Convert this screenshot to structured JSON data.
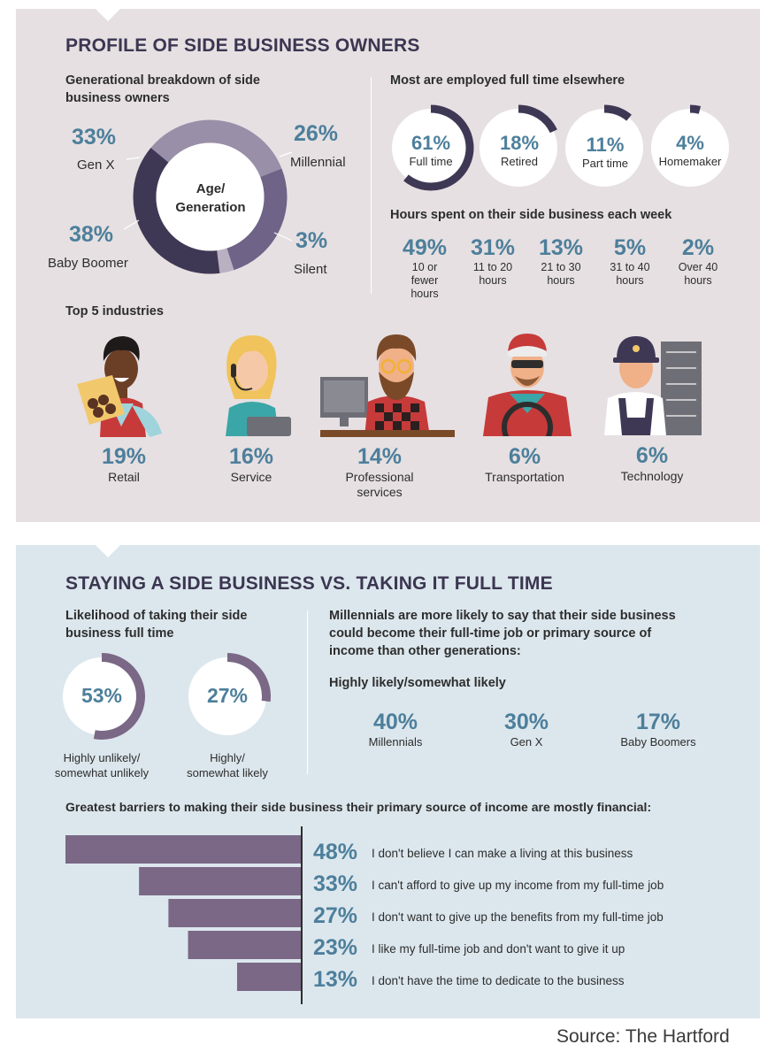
{
  "profile": {
    "title": "PROFILE OF SIDE BUSINESS OWNERS",
    "generation": {
      "heading_line1": "Generational breakdown of side",
      "heading_line2": "business owners",
      "center_line1": "Age/",
      "center_line2": "Generation",
      "items": [
        {
          "pct": "33%",
          "label": "Gen X"
        },
        {
          "pct": "26%",
          "label": "Millennial"
        },
        {
          "pct": "3%",
          "label": "Silent"
        },
        {
          "pct": "38%",
          "label": "Baby Boomer"
        }
      ]
    },
    "employment": {
      "heading": "Most are employed full time elsewhere",
      "items": [
        {
          "pct": "61%",
          "label": "Full time",
          "value": 61
        },
        {
          "pct": "18%",
          "label": "Retired",
          "value": 18
        },
        {
          "pct": "11%",
          "label": "Part time",
          "value": 11
        },
        {
          "pct": "4%",
          "label": "Homemaker",
          "value": 4
        }
      ]
    },
    "hours": {
      "heading": "Hours spent on their side business each week",
      "items": [
        {
          "pct": "49%",
          "l1": "10 or",
          "l2": "fewer",
          "l3": "hours"
        },
        {
          "pct": "31%",
          "l1": "11 to 20",
          "l2": "hours",
          "l3": ""
        },
        {
          "pct": "13%",
          "l1": "21 to 30",
          "l2": "hours",
          "l3": ""
        },
        {
          "pct": "5%",
          "l1": "31 to 40",
          "l2": "hours",
          "l3": ""
        },
        {
          "pct": "2%",
          "l1": "Over 40",
          "l2": "hours",
          "l3": ""
        }
      ]
    },
    "industries": {
      "heading": "Top 5 industries",
      "items": [
        {
          "pct": "19%",
          "l1": "Retail",
          "l2": ""
        },
        {
          "pct": "16%",
          "l1": "Service",
          "l2": ""
        },
        {
          "pct": "14%",
          "l1": "Professional",
          "l2": "services"
        },
        {
          "pct": "6%",
          "l1": "Transportation",
          "l2": ""
        },
        {
          "pct": "6%",
          "l1": "Technology",
          "l2": ""
        }
      ]
    }
  },
  "staying": {
    "title": "STAYING A SIDE BUSINESS VS. TAKING IT FULL TIME",
    "likelihood": {
      "heading_line1": "Likelihood of taking their side",
      "heading_line2": "business full time",
      "items": [
        {
          "pct": "53%",
          "l1": "Highly unlikely/",
          "l2": "somewhat unlikely",
          "value": 53
        },
        {
          "pct": "27%",
          "l1": "Highly/",
          "l2": "somewhat likely",
          "value": 27
        }
      ]
    },
    "millennials": {
      "line1": "Millennials are more likely to say that their side business",
      "line2": "could become their full-time job or primary source of",
      "line3": "income than other generations:",
      "subheading": "Highly likely/somewhat likely",
      "items": [
        {
          "pct": "40%",
          "label": "Millennials"
        },
        {
          "pct": "30%",
          "label": "Gen X"
        },
        {
          "pct": "17%",
          "label": "Baby Boomers"
        }
      ]
    },
    "barriers": {
      "heading": "Greatest barriers to making their side business their primary source of income are mostly financial:"
    }
  },
  "source": "Source: The Hartford",
  "colors": {
    "accent": "#4d7f9b",
    "ring_dark": "#3f3855",
    "ring_mid": "#6f6387",
    "ring_light": "#9a8fa8",
    "bar": "#7a6886",
    "panel_top": "#e6e0e2",
    "panel_bottom": "#dce7ed"
  },
  "chart_data": [
    {
      "type": "pie",
      "title": "Generational breakdown of side business owners",
      "categories": [
        "Gen X",
        "Millennial",
        "Silent",
        "Baby Boomer"
      ],
      "values": [
        33,
        26,
        3,
        38
      ]
    },
    {
      "type": "bar",
      "title": "Most are employed full time elsewhere",
      "categories": [
        "Full time",
        "Retired",
        "Part time",
        "Homemaker"
      ],
      "values": [
        61,
        18,
        11,
        4
      ]
    },
    {
      "type": "bar",
      "title": "Hours spent on their side business each week",
      "categories": [
        "10 or fewer hours",
        "11 to 20 hours",
        "21 to 30 hours",
        "31 to 40 hours",
        "Over 40 hours"
      ],
      "values": [
        49,
        31,
        13,
        5,
        2
      ]
    },
    {
      "type": "bar",
      "title": "Top 5 industries",
      "categories": [
        "Retail",
        "Service",
        "Professional services",
        "Transportation",
        "Technology"
      ],
      "values": [
        19,
        16,
        14,
        6,
        6
      ]
    },
    {
      "type": "bar",
      "title": "Likelihood of taking their side business full time",
      "categories": [
        "Highly unlikely/somewhat unlikely",
        "Highly/somewhat likely"
      ],
      "values": [
        53,
        27
      ]
    },
    {
      "type": "bar",
      "title": "Highly likely/somewhat likely",
      "categories": [
        "Millennials",
        "Gen X",
        "Baby Boomers"
      ],
      "values": [
        40,
        30,
        17
      ]
    },
    {
      "type": "bar",
      "title": "Greatest barriers to making their side business their primary source of income are mostly financial:",
      "orientation": "horizontal",
      "categories": [
        "I don't believe I can make a living at this business",
        "I can't afford to give up my income from my full-time job",
        "I don't want to give up the benefits from my full-time job",
        "I like my full-time job and don't want to give it up",
        "I don't have the time to dedicate to the business"
      ],
      "value_labels": [
        "48%",
        "33%",
        "27%",
        "23%",
        "13%"
      ],
      "values": [
        48,
        33,
        27,
        23,
        13
      ]
    }
  ]
}
